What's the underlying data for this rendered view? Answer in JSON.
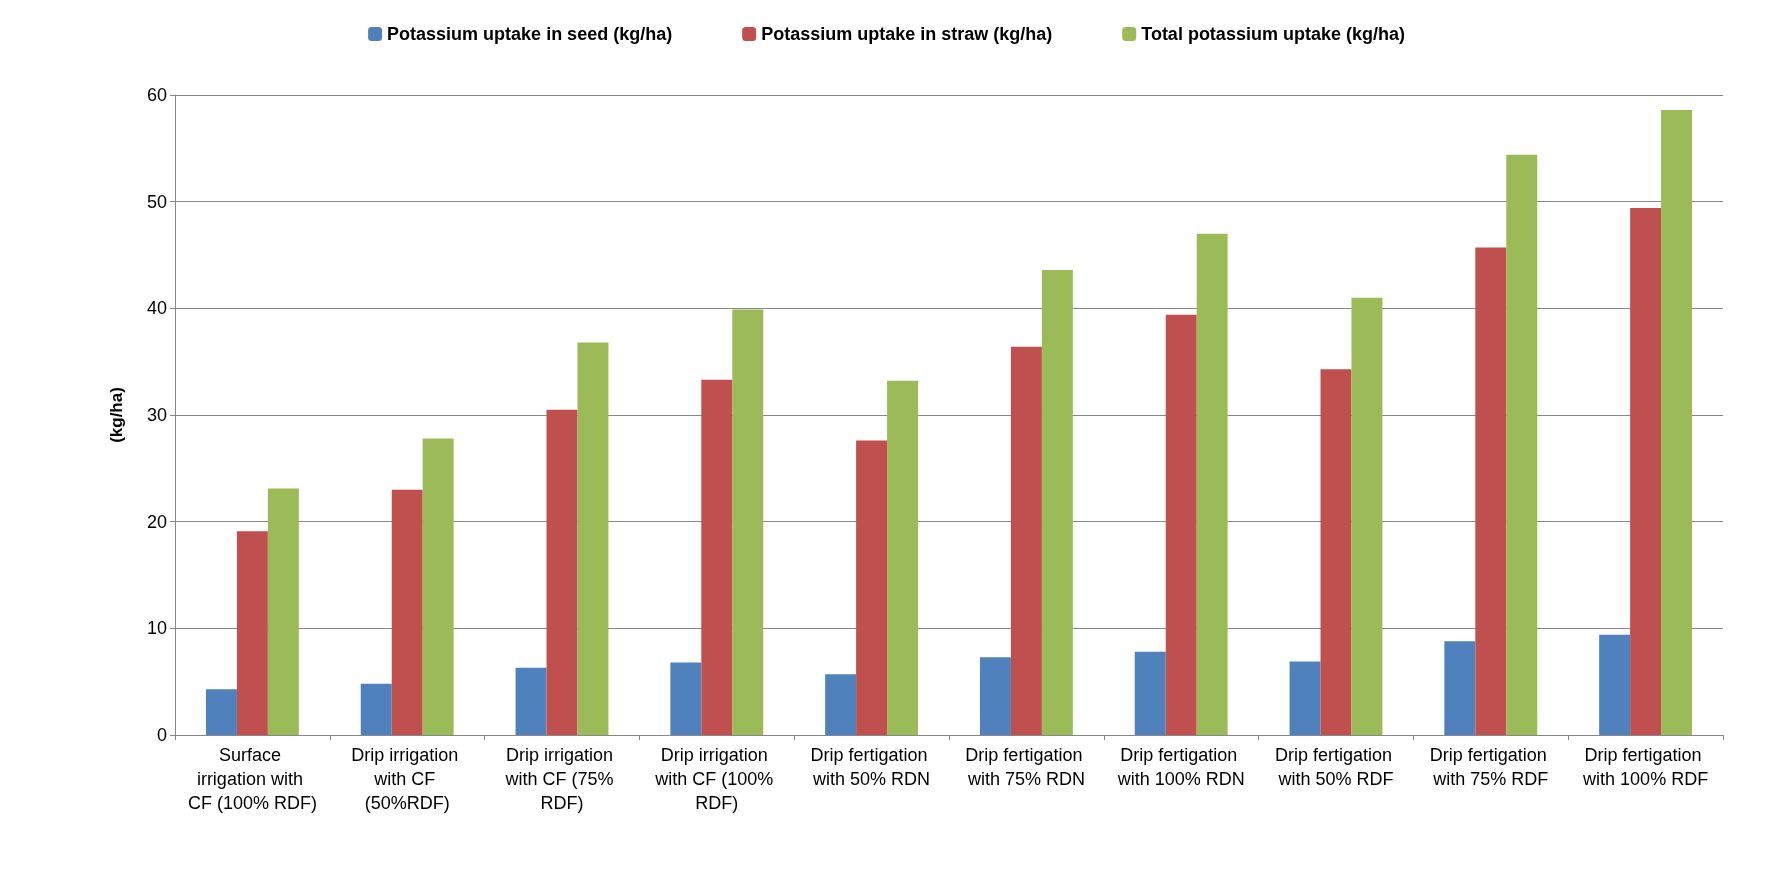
{
  "chart_data": {
    "type": "bar",
    "ylabel": "(kg/ha)",
    "categories": [
      "Surface irrigation with CF (100% RDF)",
      "Drip irrigation with CF (50%RDF)",
      "Drip irrigation with CF (75% RDF)",
      "Drip irrigation with CF (100% RDF)",
      "Drip fertigation with 50% RDN",
      "Drip fertigation with 75% RDN",
      "Drip fertigation with 100% RDN",
      "Drip fertigation with 50% RDF",
      "Drip fertigation with 75% RDF",
      "Drip fertigation with 100% RDF"
    ],
    "series": [
      {
        "name": "Potassium uptake in seed (kg/ha)",
        "color": "#4f81bd",
        "values": [
          4.3,
          4.8,
          6.3,
          6.8,
          5.7,
          7.3,
          7.8,
          6.9,
          8.8,
          9.4
        ]
      },
      {
        "name": "Potassium uptake in straw (kg/ha)",
        "color": "#c0504d",
        "values": [
          19.1,
          23.0,
          30.5,
          33.3,
          27.6,
          36.4,
          39.4,
          34.3,
          45.7,
          49.4
        ]
      },
      {
        "name": "Total potassium uptake (kg/ha)",
        "color": "#9bbb59",
        "values": [
          23.1,
          27.8,
          36.8,
          39.9,
          33.2,
          43.6,
          47.0,
          41.0,
          54.4,
          58.6
        ]
      }
    ],
    "ylim": [
      0,
      60
    ],
    "yticks": [
      0,
      10,
      20,
      30,
      40,
      50,
      60
    ],
    "grid": "y",
    "legend": "top"
  }
}
